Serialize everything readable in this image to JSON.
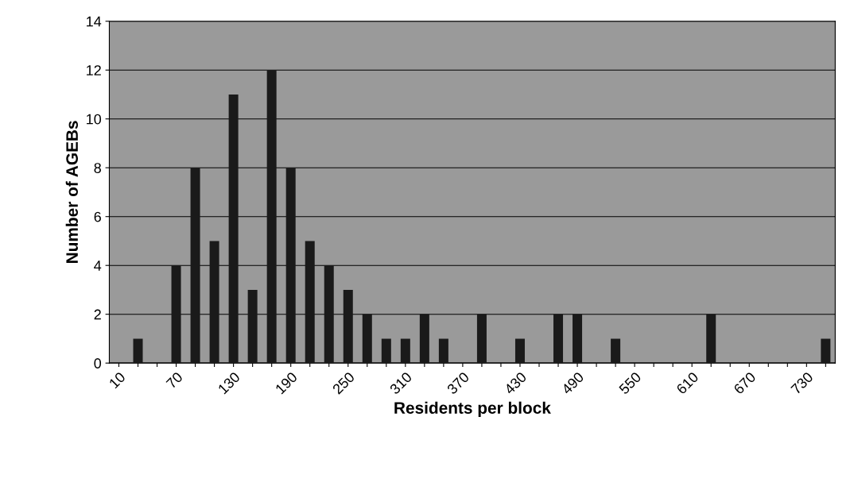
{
  "chart_data": {
    "type": "bar",
    "xlabel": "Residents per block",
    "ylabel": "Number of AGEBs",
    "categories": [
      "10",
      null,
      null,
      "70",
      null,
      null,
      "130",
      null,
      null,
      "190",
      null,
      null,
      "250",
      null,
      null,
      "310",
      null,
      null,
      "370",
      null,
      null,
      "430",
      null,
      null,
      "490",
      null,
      null,
      "550",
      null,
      null,
      "610",
      null,
      null,
      "670",
      null,
      null,
      "730",
      null
    ],
    "values": [
      0,
      1,
      0,
      4,
      8,
      5,
      11,
      3,
      12,
      8,
      5,
      4,
      3,
      2,
      1,
      1,
      2,
      1,
      0,
      2,
      0,
      1,
      0,
      2,
      2,
      0,
      1,
      0,
      0,
      0,
      0,
      2,
      0,
      0,
      0,
      0,
      0,
      1
    ],
    "color": "#1a1a1a",
    "ylim": [
      0,
      14
    ],
    "yticks": [
      0,
      2,
      4,
      6,
      8,
      10,
      12,
      14
    ],
    "grid": "y",
    "legend": false
  }
}
